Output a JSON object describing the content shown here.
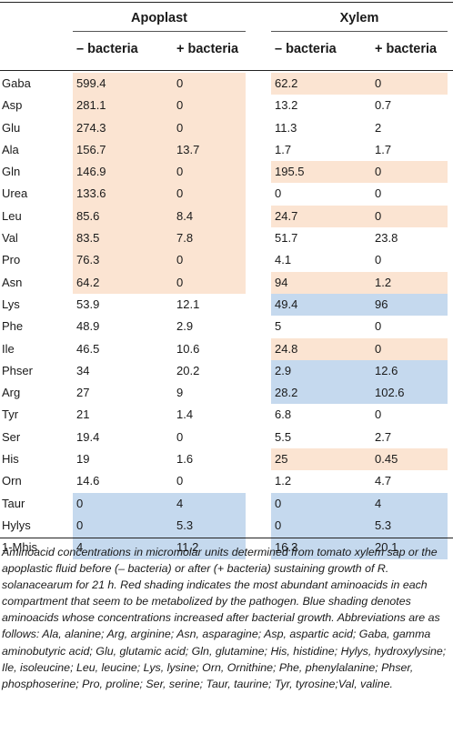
{
  "table": {
    "groups": {
      "apoplast": "Apoplast",
      "xylem": "Xylem"
    },
    "subheads": {
      "apoplast_minus": "– bacteria",
      "apoplast_plus": "+ bacteria",
      "xylem_minus": "– bacteria",
      "xylem_plus": "+ bacteria"
    },
    "rows": [
      {
        "name": "Gaba",
        "a1": "599.4",
        "a2": "0",
        "x1": "62.2",
        "x2": "0",
        "a_shade": "red",
        "x_shade": "red"
      },
      {
        "name": "Asp",
        "a1": "281.1",
        "a2": "0",
        "x1": "13.2",
        "x2": "0.7",
        "a_shade": "red",
        "x_shade": "none"
      },
      {
        "name": "Glu",
        "a1": "274.3",
        "a2": "0",
        "x1": "11.3",
        "x2": "2",
        "a_shade": "red",
        "x_shade": "none"
      },
      {
        "name": "Ala",
        "a1": "156.7",
        "a2": "13.7",
        "x1": "1.7",
        "x2": "1.7",
        "a_shade": "red",
        "x_shade": "none"
      },
      {
        "name": "Gln",
        "a1": "146.9",
        "a2": "0",
        "x1": "195.5",
        "x2": "0",
        "a_shade": "red",
        "x_shade": "red"
      },
      {
        "name": "Urea",
        "a1": "133.6",
        "a2": "0",
        "x1": "0",
        "x2": "0",
        "a_shade": "red",
        "x_shade": "none"
      },
      {
        "name": "Leu",
        "a1": "85.6",
        "a2": "8.4",
        "x1": "24.7",
        "x2": "0",
        "a_shade": "red",
        "x_shade": "red"
      },
      {
        "name": "Val",
        "a1": "83.5",
        "a2": "7.8",
        "x1": "51.7",
        "x2": "23.8",
        "a_shade": "red",
        "x_shade": "none"
      },
      {
        "name": "Pro",
        "a1": "76.3",
        "a2": "0",
        "x1": "4.1",
        "x2": "0",
        "a_shade": "red",
        "x_shade": "none"
      },
      {
        "name": "Asn",
        "a1": "64.2",
        "a2": "0",
        "x1": "94",
        "x2": "1.2",
        "a_shade": "red",
        "x_shade": "red"
      },
      {
        "name": "Lys",
        "a1": "53.9",
        "a2": "12.1",
        "x1": "49.4",
        "x2": "96",
        "a_shade": "none",
        "x_shade": "blue"
      },
      {
        "name": "Phe",
        "a1": "48.9",
        "a2": "2.9",
        "x1": "5",
        "x2": "0",
        "a_shade": "none",
        "x_shade": "none"
      },
      {
        "name": "Ile",
        "a1": "46.5",
        "a2": "10.6",
        "x1": "24.8",
        "x2": "0",
        "a_shade": "none",
        "x_shade": "red"
      },
      {
        "name": "Phser",
        "a1": "34",
        "a2": "20.2",
        "x1": "2.9",
        "x2": "12.6",
        "a_shade": "none",
        "x_shade": "blue"
      },
      {
        "name": "Arg",
        "a1": "27",
        "a2": "9",
        "x1": "28.2",
        "x2": "102.6",
        "a_shade": "none",
        "x_shade": "blue"
      },
      {
        "name": "Tyr",
        "a1": "21",
        "a2": "1.4",
        "x1": "6.8",
        "x2": "0",
        "a_shade": "none",
        "x_shade": "none"
      },
      {
        "name": "Ser",
        "a1": "19.4",
        "a2": "0",
        "x1": "5.5",
        "x2": "2.7",
        "a_shade": "none",
        "x_shade": "none"
      },
      {
        "name": "His",
        "a1": "19",
        "a2": "1.6",
        "x1": "25",
        "x2": "0.45",
        "a_shade": "none",
        "x_shade": "red"
      },
      {
        "name": "Orn",
        "a1": "14.6",
        "a2": "0",
        "x1": "1.2",
        "x2": "4.7",
        "a_shade": "none",
        "x_shade": "none"
      },
      {
        "name": "Taur",
        "a1": "0",
        "a2": "4",
        "x1": "0",
        "x2": "4",
        "a_shade": "blue",
        "x_shade": "blue"
      },
      {
        "name": "Hylys",
        "a1": "0",
        "a2": "5.3",
        "x1": "0",
        "x2": "5.3",
        "a_shade": "blue",
        "x_shade": "blue"
      },
      {
        "name": "1-Mhis",
        "a1": "4",
        "a2": "11.2",
        "x1": "16.3",
        "x2": "20.1",
        "a_shade": "blue",
        "x_shade": "blue"
      }
    ]
  },
  "caption": "Aminoacid concentrations in micromolar units determined from tomato xylem sap or the apoplastic fluid before (– bacteria) or after (+ bacteria) sustaining growth of R. solanacearum for 21 h. Red shading indicates the most abundant aminoacids in each compartment that seem to be metabolized by the pathogen. Blue shading denotes aminoacids whose concentrations increased after bacterial growth. Abbreviations are as follows: Ala, alanine; Arg, arginine; Asn, asparagine; Asp, aspartic acid; Gaba, gamma aminobutyric acid; Glu, glutamic acid; Gln, glutamine; His, histidine; Hylys, hydroxylysine; Ile, isoleucine; Leu, leucine; Lys, lysine; Orn, Ornithine; Phe, phenylalanine; Phser, phosphoserine; Pro, proline; Ser, serine; Taur, taurine; Tyr, tyrosine;Val, valine.",
  "colors": {
    "red_shade": "#fbe4d2",
    "blue_shade": "#c5d9ee"
  }
}
